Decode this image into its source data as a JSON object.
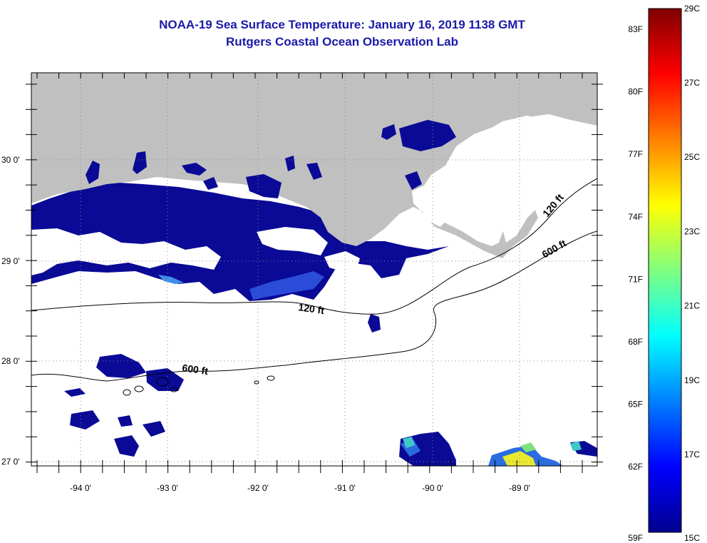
{
  "header": {
    "title": "NOAA-19 Sea Surface Temperature:  January 16, 2019 1138 GMT",
    "subtitle": "Rutgers Coastal Ocean Observation Lab"
  },
  "map": {
    "land_color": "#c0c0c0",
    "cloud_color": "#ffffff",
    "sst_cold_color": "#0a0a96",
    "lon_ticks": [
      "-94 0'",
      "-93 0'",
      "-92 0'",
      "-91 0'",
      "-90 0'",
      "-89 0'"
    ],
    "lat_ticks": [
      "30 0'",
      "29 0'",
      "28 0'",
      "27 0'"
    ],
    "isobaths": [
      {
        "label": "120 ft",
        "label_near": "-91.5 lon nearshore"
      },
      {
        "label": "120 ft",
        "label_near": "east shelf"
      },
      {
        "label": "600 ft",
        "label_near": "-93 lon offshore"
      },
      {
        "label": "600 ft",
        "label_near": "east shelf"
      }
    ]
  },
  "colorbar": {
    "fahrenheit": [
      "83F",
      "80F",
      "77F",
      "74F",
      "71F",
      "68F",
      "65F",
      "62F",
      "59F"
    ],
    "celsius": [
      "29C",
      "27C",
      "25C",
      "23C",
      "21C",
      "19C",
      "17C",
      "15C"
    ],
    "colors": [
      "#00008f",
      "#0000ff",
      "#0080ff",
      "#00ffff",
      "#80ff80",
      "#ffff00",
      "#ff8000",
      "#ff0000",
      "#800000"
    ]
  }
}
